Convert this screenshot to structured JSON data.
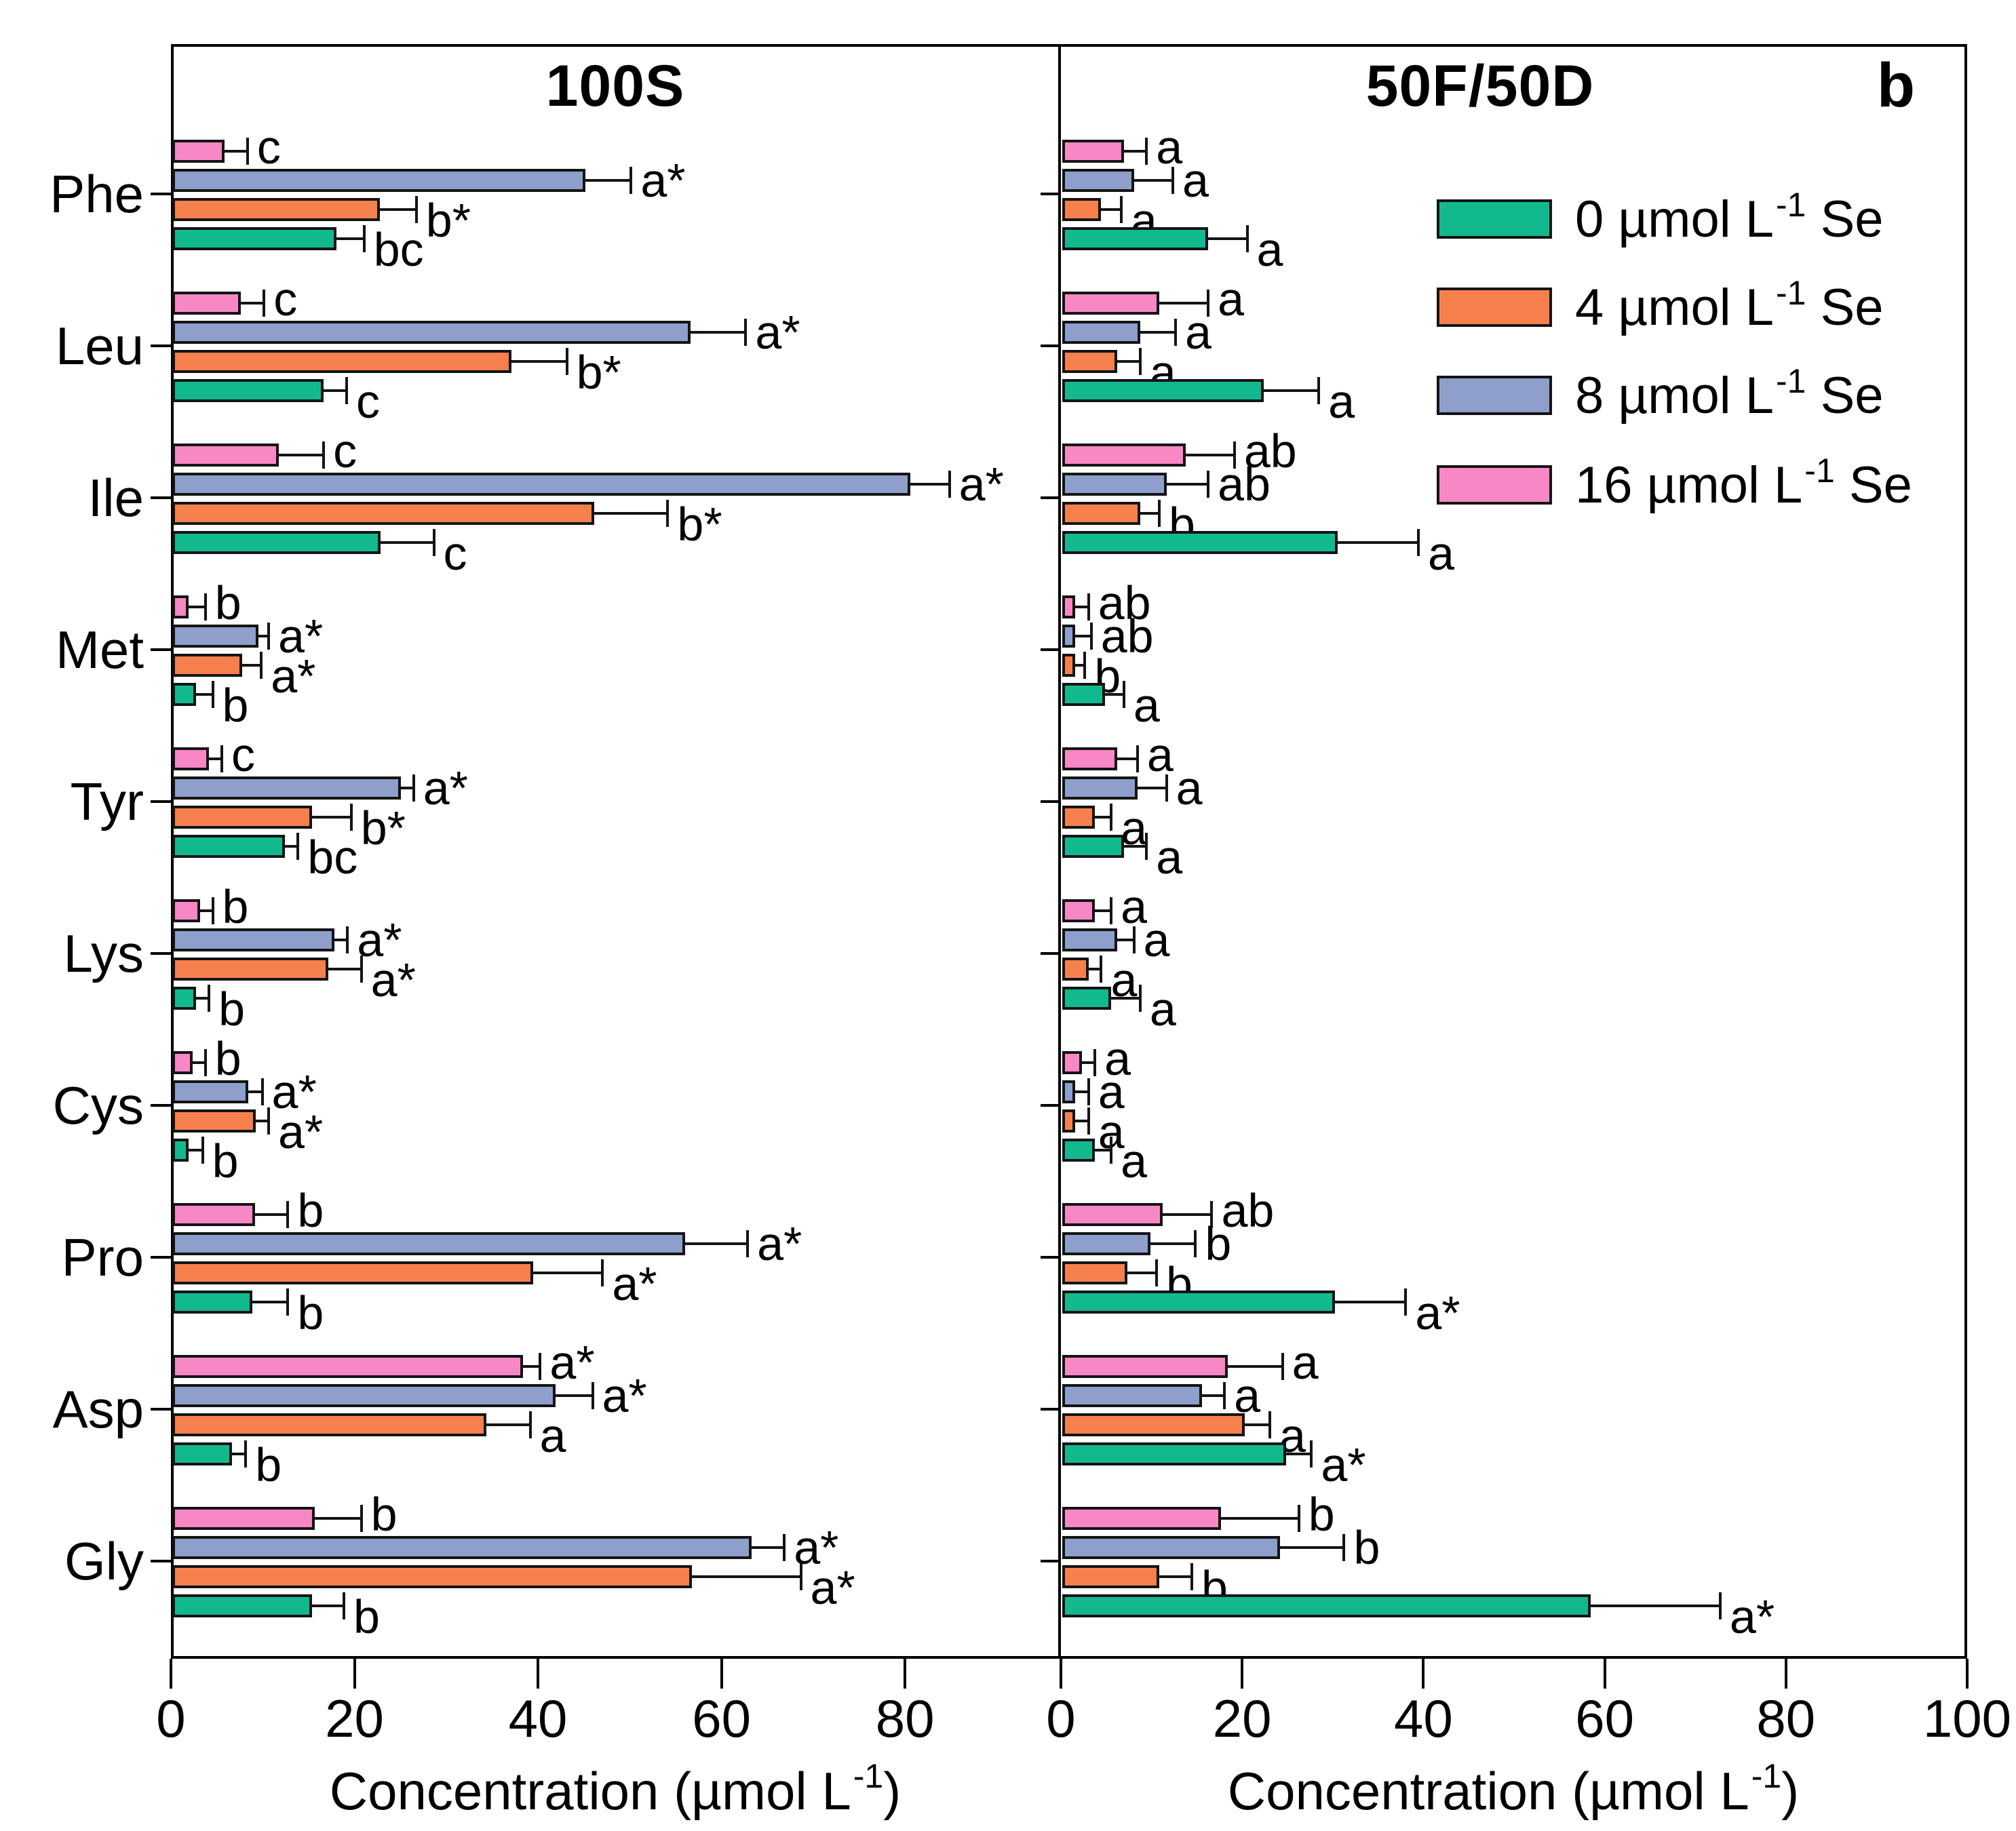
{
  "figure_label": "b",
  "axis_title": {
    "pre": "Concentration (µmol L",
    "sup": "-1",
    "post": ")"
  },
  "legend": {
    "unit_pre": " µmol L",
    "unit_sup": "-1",
    "unit_post": " Se",
    "items": [
      {
        "value": "0",
        "color": "#12b98e"
      },
      {
        "value": "4",
        "color": "#f5804e"
      },
      {
        "value": "8",
        "color": "#8d9fca"
      },
      {
        "value": "16",
        "color": "#f887c5"
      }
    ]
  },
  "chart_data": {
    "type": "bar",
    "orientation": "horizontal",
    "grid": false,
    "legend_position": "upper right of right panel",
    "categories": [
      "Phe",
      "Leu",
      "Ile",
      "Met",
      "Tyr",
      "Lys",
      "Cys",
      "Pro",
      "Asp",
      "Gly"
    ],
    "treatments": [
      {
        "name": "0 µmol L-1 Se",
        "color": "#12b98e"
      },
      {
        "name": "4 µmol L-1 Se",
        "color": "#f5804e"
      },
      {
        "name": "8 µmol L-1 Se",
        "color": "#8d9fca"
      },
      {
        "name": "16 µmol L-1 Se",
        "color": "#f887c5"
      }
    ],
    "panels": [
      {
        "title": "100S",
        "xlabel": "Concentration (µmol L-1)",
        "xlim": [
          0,
          96.7
        ],
        "xticks": [
          0,
          20,
          40,
          60,
          80
        ],
        "series": [
          {
            "name": "0 µmol L-1 Se",
            "values": [
              17.9,
              16.5,
              22.7,
              2.6,
              12.3,
              2.6,
              1.8,
              8.7,
              6.5,
              15.2
            ],
            "errors": [
              3.0,
              2.5,
              5.8,
              1.8,
              1.4,
              1.4,
              1.5,
              3.9,
              1.5,
              3.5
            ],
            "labels": [
              "bc",
              "c",
              "c",
              "b",
              "bc",
              "b",
              "b",
              "b",
              "b",
              "b"
            ]
          },
          {
            "name": "4 µmol L-1 Se",
            "values": [
              22.6,
              37.0,
              46.0,
              7.6,
              15.2,
              17.0,
              9.1,
              39.3,
              34.2,
              56.6
            ],
            "errors": [
              4.0,
              6.0,
              8.0,
              2.1,
              4.3,
              3.6,
              1.4,
              7.6,
              4.8,
              11.9
            ],
            "labels": [
              "b*",
              "b*",
              "b*",
              "a*",
              "b*",
              "a*",
              "a*",
              "a*",
              "a",
              "a*"
            ]
          },
          {
            "name": "8 µmol L-1 Se",
            "values": [
              45.0,
              56.5,
              80.4,
              9.4,
              24.9,
              17.7,
              8.3,
              55.9,
              41.8,
              63.1
            ],
            "errors": [
              5.0,
              6.0,
              4.3,
              1.1,
              1.4,
              1.4,
              1.5,
              6.8,
              4.0,
              3.6
            ],
            "labels": [
              "a*",
              "a*",
              "a*",
              "a*",
              "a*",
              "a*",
              "a*",
              "a*",
              "a*",
              "a*"
            ]
          },
          {
            "name": "16 µmol L-1 Se",
            "values": [
              5.7,
              7.5,
              11.6,
              1.8,
              4.0,
              3.0,
              2.2,
              9.0,
              38.2,
              15.5
            ],
            "errors": [
              2.5,
              2.5,
              4.9,
              1.8,
              1.4,
              1.4,
              1.4,
              3.6,
              1.9,
              5.1
            ],
            "labels": [
              "c",
              "c",
              "c",
              "b",
              "c",
              "b",
              "b",
              "b",
              "a*",
              "b"
            ]
          }
        ]
      },
      {
        "title": "50F/50D",
        "xlabel": "Concentration (µmol L-1)",
        "xlim": [
          0,
          100
        ],
        "xticks": [
          0,
          20,
          40,
          60,
          80,
          100
        ],
        "series": [
          {
            "name": "0 µmol L-1 Se",
            "values": [
              16.1,
              22.2,
              30.4,
              4.7,
              6.8,
              5.4,
              3.6,
              30.1,
              24.7,
              58.3
            ],
            "errors": [
              4.3,
              6.1,
              8.9,
              2.1,
              2.5,
              3.2,
              1.8,
              7.8,
              2.8,
              14.3
            ],
            "labels": [
              "a",
              "a",
              "a",
              "a",
              "a",
              "a",
              "a",
              "a*",
              "a*",
              "a*"
            ]
          },
          {
            "name": "4 µmol L-1 Se",
            "values": [
              4.3,
              6.1,
              8.6,
              1.4,
              3.6,
              2.9,
              1.4,
              7.2,
              20.1,
              10.7
            ],
            "errors": [
              2.2,
              2.5,
              2.1,
              1.1,
              1.8,
              1.4,
              1.5,
              3.2,
              2.8,
              3.6
            ],
            "labels": [
              "a",
              "a",
              "b",
              "b",
              "a",
              "a",
              "a",
              "b",
              "a",
              "b"
            ]
          },
          {
            "name": "8 µmol L-1 Se",
            "values": [
              7.9,
              8.6,
              11.5,
              1.4,
              8.3,
              6.1,
              1.4,
              9.7,
              15.4,
              24.0
            ],
            "errors": [
              4.3,
              3.9,
              4.6,
              1.8,
              3.2,
              1.8,
              1.5,
              5.0,
              2.5,
              7.1
            ],
            "labels": [
              "a",
              "a",
              "ab",
              "ab",
              "a",
              "a",
              "a",
              "b",
              "a",
              "b"
            ]
          },
          {
            "name": "16 µmol L-1 Se",
            "values": [
              6.8,
              10.7,
              13.6,
              1.4,
              6.1,
              3.6,
              2.2,
              11.1,
              18.3,
              17.5
            ],
            "errors": [
              2.5,
              5.4,
              5.4,
              1.5,
              2.2,
              1.8,
              1.4,
              5.4,
              6.0,
              8.6
            ],
            "labels": [
              "a",
              "a",
              "ab",
              "ab",
              "a",
              "a",
              "a",
              "ab",
              "a",
              "b"
            ]
          }
        ]
      }
    ]
  }
}
